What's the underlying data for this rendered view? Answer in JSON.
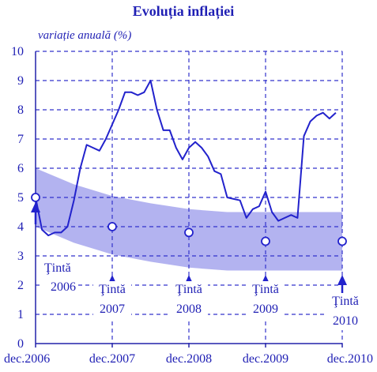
{
  "chart_data": {
    "type": "line",
    "title": "Evoluția inflației",
    "ylabel": "variație anuală (%)",
    "xlabel": "",
    "ylim": [
      0,
      10
    ],
    "y_ticks": [
      "0",
      "1",
      "2",
      "3",
      "4",
      "5",
      "6",
      "7",
      "8",
      "9",
      "10"
    ],
    "x_ticks": [
      {
        "label": "dec.2006",
        "x": 0
      },
      {
        "label": "dec.2007",
        "x": 12
      },
      {
        "label": "dec.2008",
        "x": 24
      },
      {
        "label": "dec.2009",
        "x": 36
      },
      {
        "label": "dec.2010",
        "x": 48
      }
    ],
    "x_unit": "months since dec.2006",
    "grid": "dashed",
    "colors": {
      "text": "#1f1fb4",
      "line": "#2222cc",
      "band": "#b3b3f0",
      "grid": "#3333cc",
      "axis": "#2222aa"
    },
    "series": [
      {
        "values": [
          [
            0,
            5.0
          ],
          [
            1,
            3.9
          ],
          [
            2,
            3.7
          ],
          [
            3,
            3.8
          ],
          [
            4,
            3.8
          ],
          [
            5,
            4.0
          ],
          [
            6,
            4.9
          ],
          [
            7,
            6.0
          ],
          [
            8,
            6.8
          ],
          [
            9,
            6.7
          ],
          [
            10,
            6.6
          ],
          [
            11,
            7.0
          ],
          [
            12,
            7.5
          ],
          [
            13,
            8.0
          ],
          [
            14,
            8.6
          ],
          [
            15,
            8.6
          ],
          [
            16,
            8.5
          ],
          [
            17,
            8.6
          ],
          [
            18,
            9.0
          ],
          [
            19,
            8.0
          ],
          [
            20,
            7.3
          ],
          [
            21,
            7.3
          ],
          [
            22,
            6.7
          ],
          [
            23,
            6.3
          ],
          [
            24,
            6.7
          ],
          [
            25,
            6.9
          ],
          [
            26,
            6.7
          ],
          [
            27,
            6.4
          ],
          [
            28,
            5.9
          ],
          [
            29,
            5.8
          ],
          [
            30,
            5.0
          ],
          [
            31,
            4.95
          ],
          [
            32,
            4.9
          ],
          [
            33,
            4.3
          ],
          [
            34,
            4.6
          ],
          [
            35,
            4.7
          ],
          [
            36,
            5.2
          ],
          [
            37,
            4.5
          ],
          [
            38,
            4.2
          ],
          [
            39,
            4.3
          ],
          [
            40,
            4.4
          ],
          [
            41,
            4.3
          ],
          [
            42,
            7.1
          ],
          [
            43,
            7.6
          ],
          [
            44,
            7.8
          ],
          [
            45,
            7.9
          ],
          [
            46,
            7.7
          ],
          [
            47,
            7.9
          ]
        ]
      }
    ],
    "band": {
      "upper": [
        [
          0,
          6.0
        ],
        [
          6,
          5.45
        ],
        [
          12,
          5.05
        ],
        [
          18,
          4.8
        ],
        [
          24,
          4.6
        ],
        [
          30,
          4.5
        ],
        [
          36,
          4.5
        ],
        [
          48,
          4.5
        ]
      ],
      "lower": [
        [
          0,
          4.0
        ],
        [
          6,
          3.45
        ],
        [
          12,
          3.05
        ],
        [
          18,
          2.8
        ],
        [
          24,
          2.6
        ],
        [
          30,
          2.5
        ],
        [
          36,
          2.5
        ],
        [
          48,
          2.5
        ]
      ]
    },
    "targets": [
      {
        "x": 0,
        "y": 5.0,
        "label1": "Ţintă",
        "label2": "2006"
      },
      {
        "x": 12,
        "y": 4.0,
        "label1": "Ţintă",
        "label2": "2007"
      },
      {
        "x": 24,
        "y": 3.8,
        "label1": "Ţintă",
        "label2": "2008"
      },
      {
        "x": 36,
        "y": 3.5,
        "label1": "Ţintă",
        "label2": "2009"
      },
      {
        "x": 48,
        "y": 3.5,
        "label1": "Ţintă",
        "label2": "2010"
      }
    ]
  }
}
